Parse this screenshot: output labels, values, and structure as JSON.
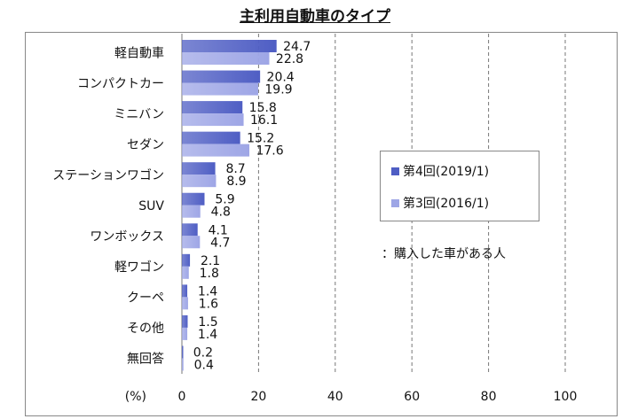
{
  "chart_data": {
    "type": "bar",
    "orientation": "horizontal",
    "title": "主利用自動車のタイプ",
    "categories": [
      "軽自動車",
      "コンパクトカー",
      "ミニバン",
      "セダン",
      "ステーションワゴン",
      "SUV",
      "ワンボックス",
      "軽ワゴン",
      "クーペ",
      "その他",
      "無回答"
    ],
    "series": [
      {
        "name": "第4回(2019/1)",
        "color": "#4f5ec4",
        "values": [
          24.7,
          20.4,
          15.8,
          15.2,
          8.7,
          5.9,
          4.1,
          2.1,
          1.4,
          1.5,
          0.2
        ]
      },
      {
        "name": "第3回(2016/1)",
        "color": "#9ea6e6",
        "values": [
          22.8,
          19.9,
          16.1,
          17.6,
          8.9,
          4.8,
          4.7,
          1.8,
          1.6,
          1.4,
          0.4
        ]
      }
    ],
    "xlabel": "(%)",
    "xlim": [
      0,
      100
    ],
    "xticks": [
      0,
      20,
      40,
      60,
      80,
      100
    ],
    "grid": "vertical dashed",
    "legend_placement": "right",
    "note": "：購入した車がある人"
  }
}
